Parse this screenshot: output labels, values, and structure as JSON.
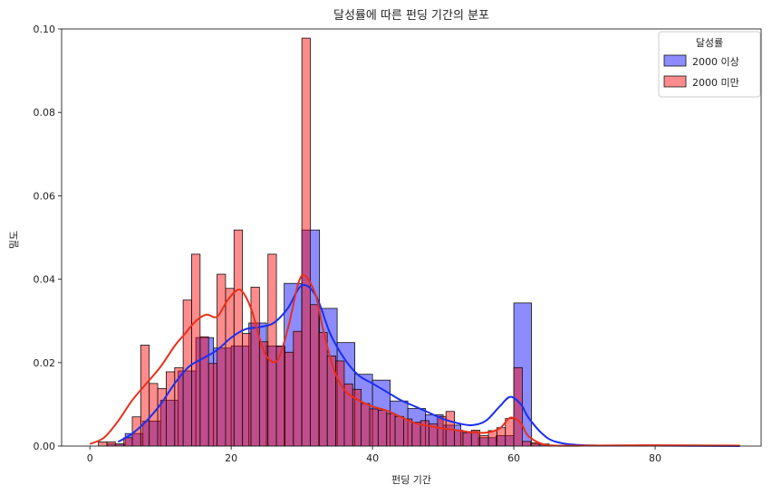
{
  "chart_data": {
    "type": "histogram",
    "title": "달성률에 따른 펀딩 기간의 분포",
    "xlabel": "펀딩 기간",
    "ylabel": "밀도",
    "xlim": [
      -4,
      95
    ],
    "ylim": [
      0,
      0.1
    ],
    "xticks": [
      "0",
      "20",
      "40",
      "60",
      "80"
    ],
    "yticks": [
      "0.00",
      "0.02",
      "0.04",
      "0.06",
      "0.08",
      "0.10"
    ],
    "grid": false,
    "legend": {
      "title": "달성률",
      "position": "top-right"
    },
    "series": [
      {
        "name": "2000 이상",
        "color": "#0000ff",
        "bin_width": 2.5,
        "bins": [
          [
            2.5,
            0.0005
          ],
          [
            5,
            0.003
          ],
          [
            7.5,
            0.006
          ],
          [
            10,
            0.011
          ],
          [
            12.5,
            0.018
          ],
          [
            15,
            0.026
          ],
          [
            17.5,
            0.0235
          ],
          [
            20,
            0.024
          ],
          [
            22.5,
            0.0295
          ],
          [
            25,
            0.024
          ],
          [
            27.5,
            0.039
          ],
          [
            30,
            0.0518
          ],
          [
            32.5,
            0.033
          ],
          [
            35,
            0.0248
          ],
          [
            37.5,
            0.0172
          ],
          [
            40,
            0.0158
          ],
          [
            42.5,
            0.0108
          ],
          [
            45,
            0.009
          ],
          [
            47.5,
            0.0075
          ],
          [
            50,
            0.005
          ],
          [
            52.5,
            0.0035
          ],
          [
            55,
            0.002
          ],
          [
            57.5,
            0.0025
          ],
          [
            60,
            0.0343
          ],
          [
            62.5,
            0.0005
          ]
        ],
        "kde": [
          [
            4,
            0.001
          ],
          [
            6,
            0.003
          ],
          [
            8,
            0.006
          ],
          [
            10,
            0.01
          ],
          [
            12,
            0.015
          ],
          [
            14,
            0.019
          ],
          [
            16,
            0.021
          ],
          [
            18,
            0.023
          ],
          [
            20,
            0.026
          ],
          [
            22,
            0.028
          ],
          [
            24,
            0.0285
          ],
          [
            26,
            0.0295
          ],
          [
            28,
            0.033
          ],
          [
            30,
            0.0385
          ],
          [
            32,
            0.036
          ],
          [
            34,
            0.027
          ],
          [
            36,
            0.021
          ],
          [
            38,
            0.017
          ],
          [
            40,
            0.015
          ],
          [
            42,
            0.013
          ],
          [
            44,
            0.011
          ],
          [
            46,
            0.0095
          ],
          [
            48,
            0.008
          ],
          [
            50,
            0.0065
          ],
          [
            52,
            0.0055
          ],
          [
            54,
            0.005
          ],
          [
            56,
            0.006
          ],
          [
            58,
            0.0095
          ],
          [
            59.5,
            0.0118
          ],
          [
            61,
            0.01
          ],
          [
            62,
            0.007
          ],
          [
            64,
            0.003
          ],
          [
            66,
            0.001
          ],
          [
            70,
            0.0002
          ],
          [
            80,
            0.0001
          ],
          [
            92,
            0.0
          ]
        ]
      },
      {
        "name": "2000 미만",
        "color": "#ff0000",
        "bin_width": 1.2,
        "bins": [
          [
            1.2,
            0.001
          ],
          [
            2.4,
            0.001
          ],
          [
            3.6,
            0.0005
          ],
          [
            4.8,
            0.002
          ],
          [
            6.0,
            0.007
          ],
          [
            7.2,
            0.0242
          ],
          [
            8.4,
            0.015
          ],
          [
            9.6,
            0.0138
          ],
          [
            10.8,
            0.0178
          ],
          [
            12.0,
            0.0188
          ],
          [
            13.2,
            0.035
          ],
          [
            14.4,
            0.046
          ],
          [
            15.6,
            0.0262
          ],
          [
            16.8,
            0.0198
          ],
          [
            18.0,
            0.0412
          ],
          [
            19.2,
            0.0378
          ],
          [
            20.4,
            0.0518
          ],
          [
            21.6,
            0.027
          ],
          [
            22.8,
            0.0381
          ],
          [
            24.0,
            0.025
          ],
          [
            25.2,
            0.046
          ],
          [
            26.4,
            0.0239
          ],
          [
            27.6,
            0.0225
          ],
          [
            28.8,
            0.0275
          ],
          [
            30.0,
            0.0978
          ],
          [
            31.2,
            0.0339
          ],
          [
            32.4,
            0.0272
          ],
          [
            33.6,
            0.0216
          ],
          [
            34.8,
            0.0204
          ],
          [
            36.0,
            0.0149
          ],
          [
            37.2,
            0.0136
          ],
          [
            38.4,
            0.0102
          ],
          [
            39.6,
            0.0089
          ],
          [
            40.8,
            0.0086
          ],
          [
            42.0,
            0.0078
          ],
          [
            43.2,
            0.0071
          ],
          [
            44.4,
            0.0065
          ],
          [
            45.6,
            0.0057
          ],
          [
            46.8,
            0.0061
          ],
          [
            48.0,
            0.0053
          ],
          [
            49.2,
            0.0071
          ],
          [
            50.4,
            0.0083
          ],
          [
            51.6,
            0.0038
          ],
          [
            52.8,
            0.0032
          ],
          [
            54.0,
            0.0038
          ],
          [
            55.2,
            0.0025
          ],
          [
            56.4,
            0.0037
          ],
          [
            57.6,
            0.0044
          ],
          [
            58.8,
            0.0066
          ],
          [
            60.0,
            0.0188
          ],
          [
            61.2,
            0.0011
          ],
          [
            62.4,
            0.0008
          ],
          [
            63.6,
            0.0004
          ],
          [
            64.8,
            0.0002
          ],
          [
            70,
            0.0001
          ],
          [
            78,
            0.0001
          ],
          [
            86,
            0.0002
          ]
        ],
        "kde": [
          [
            0,
            0.0005
          ],
          [
            2,
            0.002
          ],
          [
            4,
            0.006
          ],
          [
            6,
            0.011
          ],
          [
            8,
            0.015
          ],
          [
            10,
            0.019
          ],
          [
            12,
            0.024
          ],
          [
            13.5,
            0.027
          ],
          [
            15,
            0.03
          ],
          [
            16.5,
            0.0315
          ],
          [
            18,
            0.031
          ],
          [
            19.5,
            0.035
          ],
          [
            21,
            0.0375
          ],
          [
            22,
            0.036
          ],
          [
            23,
            0.032
          ],
          [
            24,
            0.026
          ],
          [
            25,
            0.0215
          ],
          [
            26.5,
            0.0205
          ],
          [
            28,
            0.028
          ],
          [
            29.5,
            0.039
          ],
          [
            30.5,
            0.0408
          ],
          [
            32,
            0.036
          ],
          [
            33,
            0.028
          ],
          [
            34.5,
            0.0185
          ],
          [
            36,
            0.0135
          ],
          [
            38,
            0.011
          ],
          [
            40,
            0.0095
          ],
          [
            42,
            0.0085
          ],
          [
            44,
            0.007
          ],
          [
            46,
            0.0055
          ],
          [
            48,
            0.0048
          ],
          [
            50,
            0.0042
          ],
          [
            52,
            0.0038
          ],
          [
            54,
            0.0033
          ],
          [
            56,
            0.0032
          ],
          [
            58,
            0.0042
          ],
          [
            59.5,
            0.0068
          ],
          [
            61,
            0.0055
          ],
          [
            62,
            0.0025
          ],
          [
            64,
            0.0005
          ],
          [
            66,
            0.0001
          ],
          [
            70,
            0.0001
          ],
          [
            80,
            0.0002
          ],
          [
            92,
            0.0001
          ]
        ]
      }
    ]
  }
}
